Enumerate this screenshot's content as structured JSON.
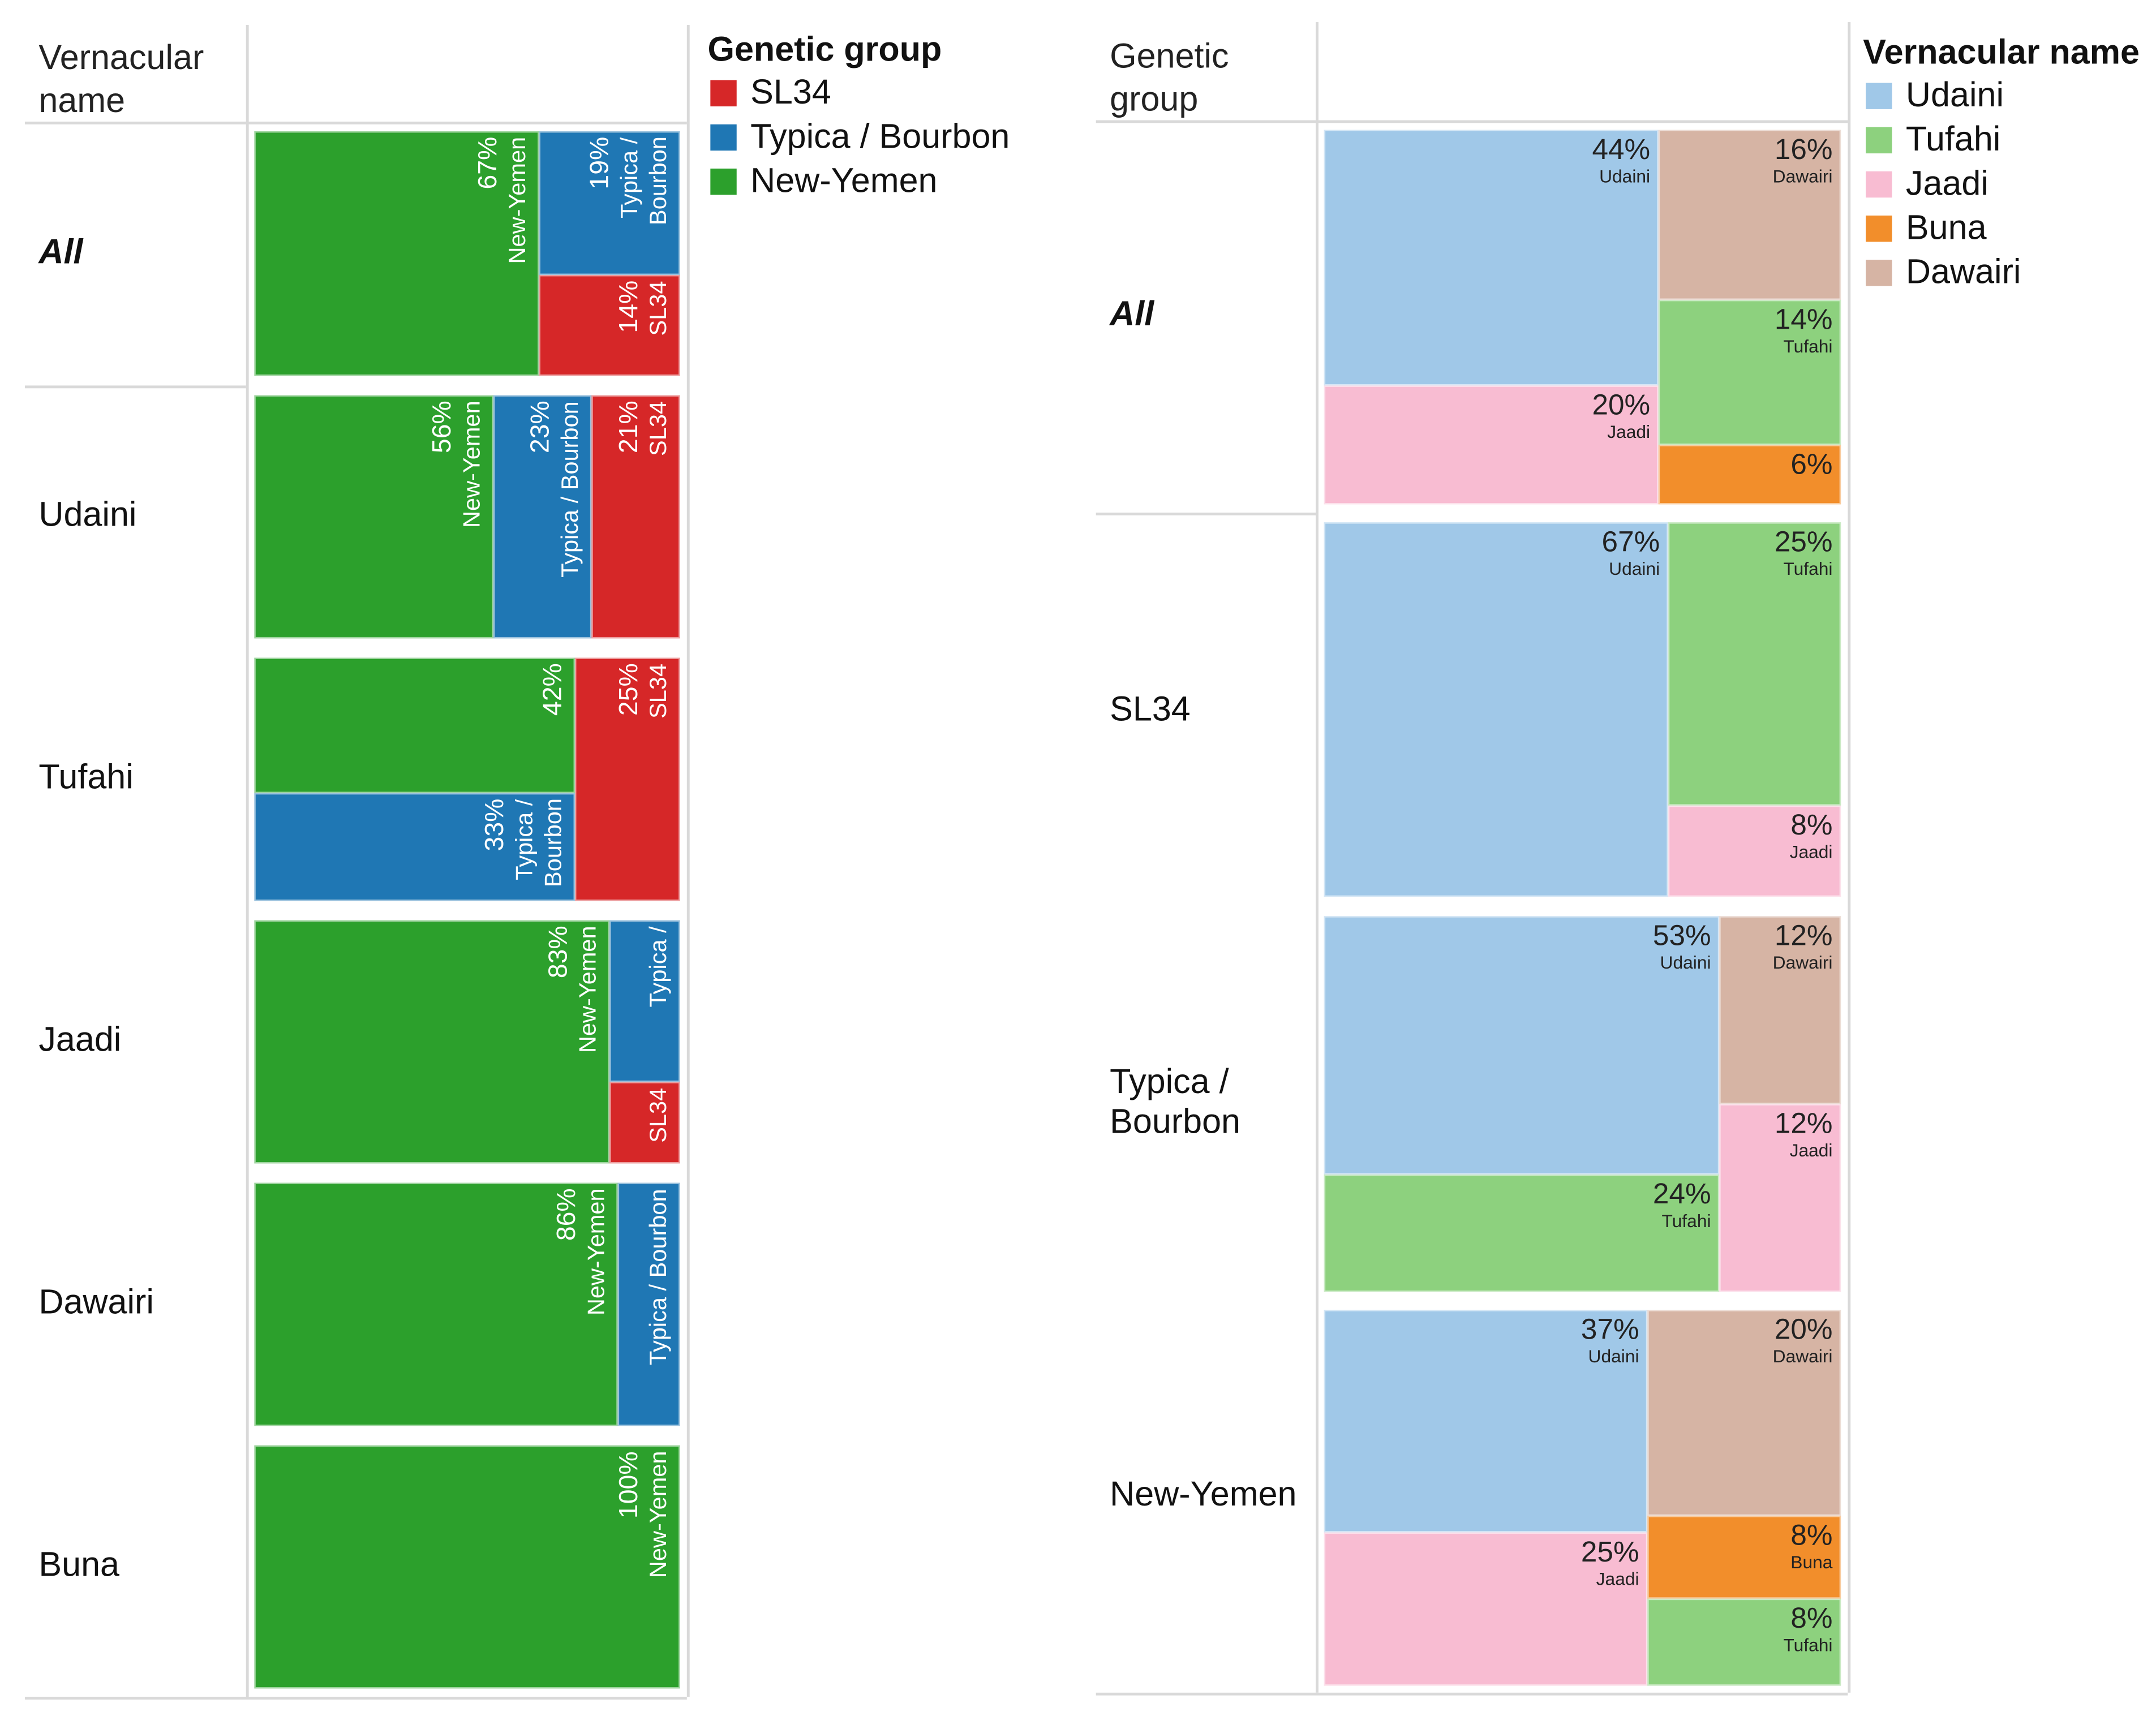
{
  "chart_data": [
    {
      "type": "treemap",
      "row_header": "Vernacular name",
      "legend": {
        "title": "Genetic group",
        "placement": "right",
        "items": [
          {
            "label": "SL34",
            "color": "#d62728"
          },
          {
            "label": "Typica / Bourbon",
            "color": "#1f77b4"
          },
          {
            "label": "New-Yemen",
            "color": "#2ca02c"
          }
        ]
      },
      "rows": [
        {
          "label": "All",
          "segments": [
            {
              "group": "New-Yemen",
              "value": 67,
              "lines": [
                "67%",
                "New-Yemen"
              ]
            },
            {
              "group": "Typica / Bourbon",
              "value": 19,
              "lines": [
                "19%",
                "Typica /",
                "Bourbon"
              ]
            },
            {
              "group": "SL34",
              "value": 14,
              "lines": [
                "14%",
                "SL34"
              ]
            }
          ]
        },
        {
          "label": "Udaini",
          "segments": [
            {
              "group": "New-Yemen",
              "value": 56,
              "lines": [
                "56%",
                "New-Yemen"
              ]
            },
            {
              "group": "Typica / Bourbon",
              "value": 23,
              "lines": [
                "23%",
                "Typica / Bourbon"
              ]
            },
            {
              "group": "SL34",
              "value": 21,
              "lines": [
                "21%",
                "SL34"
              ]
            }
          ]
        },
        {
          "label": "Tufahi",
          "segments": [
            {
              "group": "New-Yemen",
              "value": 42,
              "lines": [
                "42%"
              ]
            },
            {
              "group": "Typica / Bourbon",
              "value": 33,
              "lines": [
                "33%",
                "Typica /",
                "Bourbon"
              ]
            },
            {
              "group": "SL34",
              "value": 25,
              "lines": [
                "25%",
                "SL34"
              ]
            }
          ]
        },
        {
          "label": "Jaadi",
          "segments": [
            {
              "group": "New-Yemen",
              "value": 83,
              "lines": [
                "83%",
                "New-Yemen"
              ]
            },
            {
              "group": "Typica / Bourbon",
              "lines": [
                "Typica /"
              ]
            },
            {
              "group": "SL34",
              "lines": [
                "SL34"
              ]
            }
          ]
        },
        {
          "label": "Dawairi",
          "segments": [
            {
              "group": "New-Yemen",
              "value": 86,
              "lines": [
                "86%",
                "New-Yemen"
              ]
            },
            {
              "group": "Typica / Bourbon",
              "lines": [
                "Typica / Bourbon"
              ]
            }
          ]
        },
        {
          "label": "Buna",
          "segments": [
            {
              "group": "New-Yemen",
              "value": 100,
              "lines": [
                "100%",
                "New-Yemen"
              ]
            }
          ]
        }
      ]
    },
    {
      "type": "treemap",
      "row_header": "Genetic group",
      "legend": {
        "title": "Vernacular name",
        "placement": "right",
        "items": [
          {
            "label": "Udaini",
            "color": "#a0c8e8"
          },
          {
            "label": "Tufahi",
            "color": "#8dd17e"
          },
          {
            "label": "Jaadi",
            "color": "#f8bcd2"
          },
          {
            "label": "Buna",
            "color": "#f28e2b"
          },
          {
            "label": "Dawairi",
            "color": "#d6b4a4"
          }
        ]
      },
      "rows": [
        {
          "label": "All",
          "segments": [
            {
              "group": "Udaini",
              "value": 44,
              "lines": [
                "44%",
                "Udaini"
              ]
            },
            {
              "group": "Jaadi",
              "value": 20,
              "lines": [
                "20%",
                "Jaadi"
              ]
            },
            {
              "group": "Dawairi",
              "value": 16,
              "lines": [
                "16%",
                "Dawairi"
              ]
            },
            {
              "group": "Tufahi",
              "value": 14,
              "lines": [
                "14%",
                "Tufahi"
              ]
            },
            {
              "group": "Buna",
              "value": 6,
              "lines": [
                "6%"
              ]
            }
          ]
        },
        {
          "label": "SL34",
          "segments": [
            {
              "group": "Udaini",
              "value": 67,
              "lines": [
                "67%",
                "Udaini"
              ]
            },
            {
              "group": "Tufahi",
              "value": 25,
              "lines": [
                "25%",
                "Tufahi"
              ]
            },
            {
              "group": "Jaadi",
              "value": 8,
              "lines": [
                "8%",
                "Jaadi"
              ]
            }
          ]
        },
        {
          "label": "Typica / Bourbon",
          "label_lines": [
            "Typica /",
            "Bourbon"
          ],
          "segments": [
            {
              "group": "Udaini",
              "value": 53,
              "lines": [
                "53%",
                "Udaini"
              ]
            },
            {
              "group": "Tufahi",
              "value": 24,
              "lines": [
                "24%",
                "Tufahi"
              ]
            },
            {
              "group": "Dawairi",
              "value": 12,
              "lines": [
                "12%",
                "Dawairi"
              ]
            },
            {
              "group": "Jaadi",
              "value": 12,
              "lines": [
                "12%",
                "Jaadi"
              ]
            }
          ]
        },
        {
          "label": "New-Yemen",
          "segments": [
            {
              "group": "Udaini",
              "value": 37,
              "lines": [
                "37%",
                "Udaini"
              ]
            },
            {
              "group": "Jaadi",
              "value": 25,
              "lines": [
                "25%",
                "Jaadi"
              ]
            },
            {
              "group": "Dawairi",
              "value": 20,
              "lines": [
                "20%",
                "Dawairi"
              ]
            },
            {
              "group": "Buna",
              "value": 8,
              "lines": [
                "8%",
                "Buna"
              ]
            },
            {
              "group": "Tufahi",
              "value": 8,
              "lines": [
                "8%",
                "Tufahi"
              ]
            }
          ]
        }
      ]
    }
  ]
}
